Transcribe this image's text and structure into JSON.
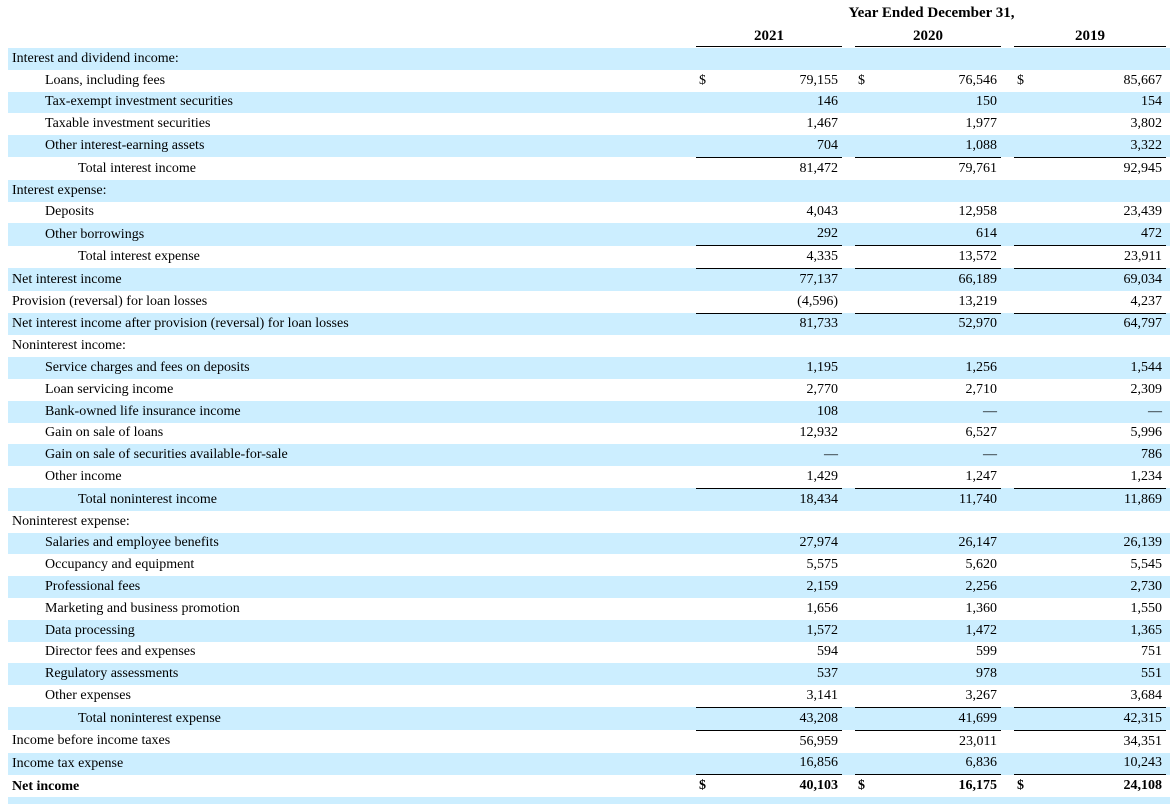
{
  "header": {
    "period": "Year Ended December 31,",
    "years": [
      "2021",
      "2020",
      "2019"
    ]
  },
  "rows": [
    {
      "label": "Interest and dividend income:",
      "indent": 0,
      "shade": true,
      "section": true
    },
    {
      "label": "Loans, including fees",
      "indent": 1,
      "shade": false,
      "dollar": true,
      "values": [
        "79,155",
        "76,546",
        "85,667"
      ]
    },
    {
      "label": "Tax-exempt investment securities",
      "indent": 1,
      "shade": true,
      "values": [
        "146",
        "150",
        "154"
      ]
    },
    {
      "label": "Taxable investment securities",
      "indent": 1,
      "shade": false,
      "values": [
        "1,467",
        "1,977",
        "3,802"
      ]
    },
    {
      "label": "Other interest-earning assets",
      "indent": 1,
      "shade": true,
      "values": [
        "704",
        "1,088",
        "3,322"
      ],
      "rule": "single"
    },
    {
      "label": "Total interest income",
      "indent": 2,
      "shade": false,
      "values": [
        "81,472",
        "79,761",
        "92,945"
      ]
    },
    {
      "label": "Interest expense:",
      "indent": 0,
      "shade": true,
      "section": true
    },
    {
      "label": "Deposits",
      "indent": 1,
      "shade": false,
      "values": [
        "4,043",
        "12,958",
        "23,439"
      ]
    },
    {
      "label": "Other borrowings",
      "indent": 1,
      "shade": true,
      "values": [
        "292",
        "614",
        "472"
      ],
      "rule": "single"
    },
    {
      "label": "Total interest expense",
      "indent": 2,
      "shade": false,
      "values": [
        "4,335",
        "13,572",
        "23,911"
      ],
      "rule": "single"
    },
    {
      "label": "Net interest income",
      "indent": 0,
      "shade": true,
      "values": [
        "77,137",
        "66,189",
        "69,034"
      ]
    },
    {
      "label": "Provision (reversal) for loan losses",
      "indent": 0,
      "shade": false,
      "values": [
        "(4,596)",
        "13,219",
        "4,237"
      ],
      "rule": "single"
    },
    {
      "label": "Net interest income after provision (reversal) for loan losses",
      "indent": 0,
      "shade": true,
      "values": [
        "81,733",
        "52,970",
        "64,797"
      ]
    },
    {
      "label": "Noninterest income:",
      "indent": 0,
      "shade": false,
      "section": true
    },
    {
      "label": "Service charges and fees on deposits",
      "indent": 1,
      "shade": true,
      "values": [
        "1,195",
        "1,256",
        "1,544"
      ]
    },
    {
      "label": "Loan servicing income",
      "indent": 1,
      "shade": false,
      "values": [
        "2,770",
        "2,710",
        "2,309"
      ]
    },
    {
      "label": "Bank-owned life insurance income",
      "indent": 1,
      "shade": true,
      "values": [
        "108",
        "—",
        "—"
      ]
    },
    {
      "label": "Gain on sale of loans",
      "indent": 1,
      "shade": false,
      "values": [
        "12,932",
        "6,527",
        "5,996"
      ]
    },
    {
      "label": "Gain on sale of securities available-for-sale",
      "indent": 1,
      "shade": true,
      "values": [
        "—",
        "—",
        "786"
      ]
    },
    {
      "label": "Other income",
      "indent": 1,
      "shade": false,
      "values": [
        "1,429",
        "1,247",
        "1,234"
      ],
      "rule": "single"
    },
    {
      "label": "Total noninterest income",
      "indent": 2,
      "shade": true,
      "values": [
        "18,434",
        "11,740",
        "11,869"
      ]
    },
    {
      "label": "Noninterest expense:",
      "indent": 0,
      "shade": false,
      "section": true
    },
    {
      "label": "Salaries and employee benefits",
      "indent": 1,
      "shade": true,
      "values": [
        "27,974",
        "26,147",
        "26,139"
      ]
    },
    {
      "label": "Occupancy and equipment",
      "indent": 1,
      "shade": false,
      "values": [
        "5,575",
        "5,620",
        "5,545"
      ]
    },
    {
      "label": "Professional fees",
      "indent": 1,
      "shade": true,
      "values": [
        "2,159",
        "2,256",
        "2,730"
      ]
    },
    {
      "label": "Marketing and business promotion",
      "indent": 1,
      "shade": false,
      "values": [
        "1,656",
        "1,360",
        "1,550"
      ]
    },
    {
      "label": "Data processing",
      "indent": 1,
      "shade": true,
      "values": [
        "1,572",
        "1,472",
        "1,365"
      ]
    },
    {
      "label": "Director fees and expenses",
      "indent": 1,
      "shade": false,
      "values": [
        "594",
        "599",
        "751"
      ]
    },
    {
      "label": "Regulatory assessments",
      "indent": 1,
      "shade": true,
      "values": [
        "537",
        "978",
        "551"
      ]
    },
    {
      "label": "Other expenses",
      "indent": 1,
      "shade": false,
      "values": [
        "3,141",
        "3,267",
        "3,684"
      ],
      "rule": "single"
    },
    {
      "label": "Total noninterest expense",
      "indent": 2,
      "shade": true,
      "values": [
        "43,208",
        "41,699",
        "42,315"
      ],
      "rule": "single"
    },
    {
      "label": "Income before income taxes",
      "indent": 0,
      "shade": false,
      "values": [
        "56,959",
        "23,011",
        "34,351"
      ]
    },
    {
      "label": "Income tax expense",
      "indent": 0,
      "shade": true,
      "values": [
        "16,856",
        "6,836",
        "10,243"
      ],
      "rule": "single"
    },
    {
      "label": "Net income",
      "indent": 0,
      "shade": false,
      "bold": true,
      "dollar": true,
      "values": [
        "40,103",
        "16,175",
        "24,108"
      ],
      "rule": "double"
    }
  ],
  "currency_symbol": "$",
  "colors": {
    "shade": "#cceeff"
  }
}
